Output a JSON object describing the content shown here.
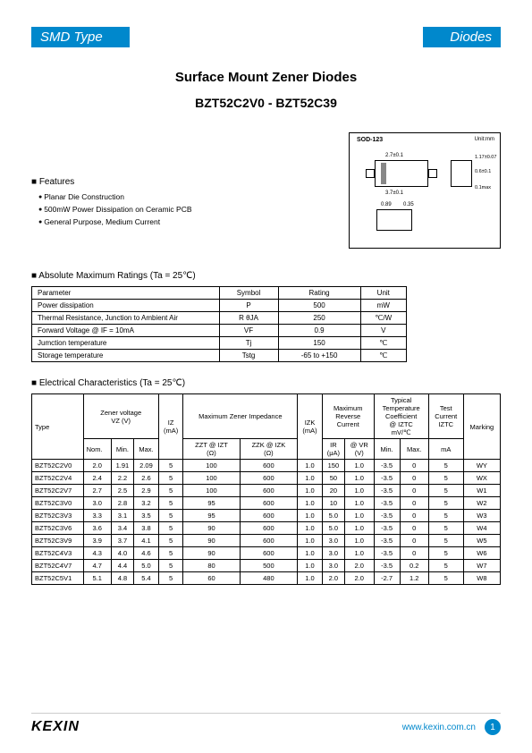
{
  "header": {
    "left": "SMD Type",
    "right": "Diodes"
  },
  "title1": "Surface Mount Zener Diodes",
  "title2": "BZT52C2V0 - BZT52C39",
  "features": {
    "heading": "Features",
    "items": [
      "Planar Die Construction",
      "500mW Power Dissipation on Ceramic PCB",
      "General Purpose, Medium Current"
    ]
  },
  "package": {
    "label": "SOD-123",
    "unit": "Unit:mm",
    "dims": [
      "2.7±0.1",
      "3.7±0.1",
      "0.89",
      "0.35",
      "1.17±0.07",
      "0.6±0.1",
      "0.1max"
    ]
  },
  "ratings": {
    "heading": "Absolute Maximum Ratings (Ta = 25℃)",
    "columns": [
      "Parameter",
      "Symbol",
      "Rating",
      "Unit"
    ],
    "rows": [
      [
        "Power dissipation",
        "P",
        "500",
        "mW"
      ],
      [
        "Thermal Resistance, Junction to Ambient Air",
        "R θJA",
        "250",
        "℃/W"
      ],
      [
        "Forward Voltage        @ IF = 10mA",
        "VF",
        "0.9",
        "V"
      ],
      [
        "Jumction temperature",
        "Tj",
        "150",
        "℃"
      ],
      [
        "Storage temperature",
        "Tstg",
        "-65 to +150",
        "℃"
      ]
    ]
  },
  "electrical": {
    "heading": "Electrical Characteristics (Ta = 25℃)",
    "header_groups": [
      {
        "label": "Type",
        "span": 1
      },
      {
        "label": "Zener voltage\nVZ  (V)",
        "span": 3
      },
      {
        "label": "",
        "span": 1
      },
      {
        "label": "Maximum Zener Impedance",
        "span": 2
      },
      {
        "label": "",
        "span": 1
      },
      {
        "label": "Maximum\nReverse\nCurrent",
        "span": 2
      },
      {
        "label": "Typical\nTemperature\nCoefficient\n@ IZTC\nmV/℃",
        "span": 2
      },
      {
        "label": "Test\nCurrent\nIZTC",
        "span": 1
      },
      {
        "label": "Marking",
        "span": 1
      }
    ],
    "sub_headers": [
      "",
      "Nom.",
      "Min.",
      "Max.",
      "IZ\n(mA)",
      "ZZT @ IZT\n(Ω)",
      "ZZK @ IZK\n(Ω)",
      "IZK\n(mA)",
      "IR\n(μA)",
      "@ VR\n(V)",
      "Min.",
      "Max.",
      "mA",
      ""
    ],
    "rows": [
      [
        "BZT52C2V0",
        "2.0",
        "1.91",
        "2.09",
        "5",
        "100",
        "600",
        "1.0",
        "150",
        "1.0",
        "-3.5",
        "0",
        "5",
        "WY"
      ],
      [
        "BZT52C2V4",
        "2.4",
        "2.2",
        "2.6",
        "5",
        "100",
        "600",
        "1.0",
        "50",
        "1.0",
        "-3.5",
        "0",
        "5",
        "WX"
      ],
      [
        "BZT52C2V7",
        "2.7",
        "2.5",
        "2.9",
        "5",
        "100",
        "600",
        "1.0",
        "20",
        "1.0",
        "-3.5",
        "0",
        "5",
        "W1"
      ],
      [
        "BZT52C3V0",
        "3.0",
        "2.8",
        "3.2",
        "5",
        "95",
        "600",
        "1.0",
        "10",
        "1.0",
        "-3.5",
        "0",
        "5",
        "W2"
      ],
      [
        "BZT52C3V3",
        "3.3",
        "3.1",
        "3.5",
        "5",
        "95",
        "600",
        "1.0",
        "5.0",
        "1.0",
        "-3.5",
        "0",
        "5",
        "W3"
      ],
      [
        "BZT52C3V6",
        "3.6",
        "3.4",
        "3.8",
        "5",
        "90",
        "600",
        "1.0",
        "5.0",
        "1.0",
        "-3.5",
        "0",
        "5",
        "W4"
      ],
      [
        "BZT52C3V9",
        "3.9",
        "3.7",
        "4.1",
        "5",
        "90",
        "600",
        "1.0",
        "3.0",
        "1.0",
        "-3.5",
        "0",
        "5",
        "W5"
      ],
      [
        "BZT52C4V3",
        "4.3",
        "4.0",
        "4.6",
        "5",
        "90",
        "600",
        "1.0",
        "3.0",
        "1.0",
        "-3.5",
        "0",
        "5",
        "W6"
      ],
      [
        "BZT52C4V7",
        "4.7",
        "4.4",
        "5.0",
        "5",
        "80",
        "500",
        "1.0",
        "3.0",
        "2.0",
        "-3.5",
        "0.2",
        "5",
        "W7"
      ],
      [
        "BZT52C5V1",
        "5.1",
        "4.8",
        "5.4",
        "5",
        "60",
        "480",
        "1.0",
        "2.0",
        "2.0",
        "-2.7",
        "1.2",
        "5",
        "W8"
      ]
    ]
  },
  "footer": {
    "logo": "KEXIN",
    "url": "www.kexin.com.cn",
    "page": "1"
  },
  "colors": {
    "accent": "#0088cc"
  }
}
